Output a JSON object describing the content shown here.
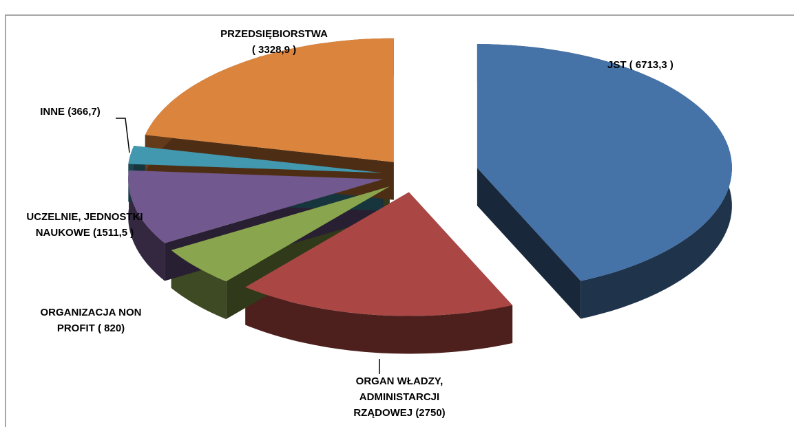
{
  "chart_data": {
    "type": "pie3d",
    "categories": [
      "JST",
      "ORGAN WŁADZY, ADMINISTARCJI RZĄDOWEJ",
      "ORGANIZACJA NON PROFIT",
      "UCZELNIE, JEDNOSTKI NAUKOWE",
      "INNE",
      "PRZEDSIĘBIORSTWA"
    ],
    "values": [
      6713.3,
      2750,
      820,
      1511.5,
      366.7,
      3328.9
    ],
    "value_labels": [
      [
        "JST ( 6713,3 )"
      ],
      [
        "ORGAN WŁADZY,",
        "ADMINISTARCJI",
        "RZĄDOWEJ (2750)"
      ],
      [
        "ORGANIZACJA NON",
        "PROFIT ( 820)"
      ],
      [
        "UCZELNIE, JEDNOSTKI",
        "NAUKOWE (1511,5 )"
      ],
      [
        "INNE (366,7)"
      ],
      [
        "PRZEDSIĘBIORSTWA",
        "( 3328,9 )"
      ]
    ],
    "colors": [
      "#4572a7",
      "#aa4643",
      "#89a54e",
      "#71588f",
      "#4198af",
      "#db843d"
    ]
  }
}
